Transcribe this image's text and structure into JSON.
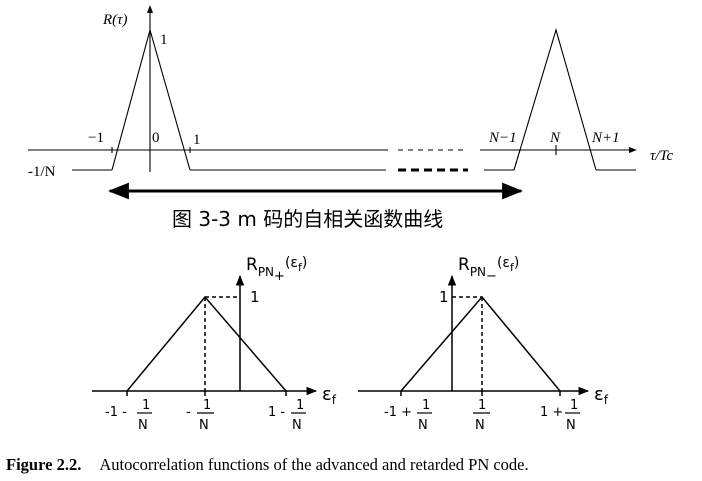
{
  "top_diagram": {
    "y_axis_label": "R(τ)",
    "x_axis_label": "τ/Tc",
    "peak_label": "1",
    "tick_labels": {
      "neg_one": "−1",
      "zero": "0",
      "one": "1",
      "n_minus_1": "N−1",
      "n": "N",
      "n_plus_1": "N+1"
    },
    "floor_label": "-1/N",
    "caption": "图 3-3 m 码的自相关函数曲线"
  },
  "bottom_left_diagram": {
    "y_axis_label": "R",
    "y_axis_sub": "PN",
    "y_axis_subsub": "+",
    "y_axis_arg": "(ε",
    "y_axis_arg_sub": "f",
    "y_axis_arg_close": ")",
    "x_axis_label": "ε",
    "x_axis_sub": "f",
    "peak_label": "1",
    "tick_left": {
      "num_prefix": "-1 - ",
      "num": "1",
      "den": "N"
    },
    "tick_mid": {
      "num_prefix": "- ",
      "num": "1",
      "den": "N"
    },
    "tick_right": {
      "num_prefix": "1 - ",
      "num": "1",
      "den": "N"
    }
  },
  "bottom_right_diagram": {
    "y_axis_label": "R",
    "y_axis_sub": "PN",
    "y_axis_subsub": "−",
    "y_axis_arg": "(ε",
    "y_axis_arg_sub": "f",
    "y_axis_arg_close": ")",
    "x_axis_label": "ε",
    "x_axis_sub": "f",
    "peak_label": "1",
    "tick_left": {
      "num_prefix": "-1 + ",
      "num": "1",
      "den": "N"
    },
    "tick_mid": {
      "num_prefix": "",
      "num": "1",
      "den": "N"
    },
    "tick_right": {
      "num_prefix": "1 + ",
      "num": "1",
      "den": "N"
    }
  },
  "figure_caption": {
    "label": "Figure 2.2.",
    "text": "Autocorrelation functions of the advanced and retarded PN code."
  }
}
